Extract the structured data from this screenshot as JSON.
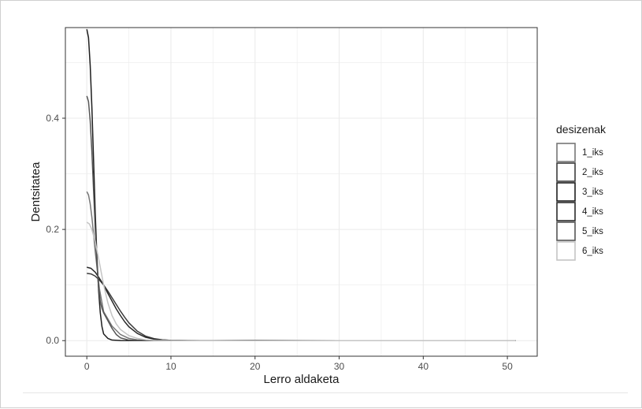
{
  "chart_data": {
    "type": "line",
    "xlabel": "Lerro aldaketa",
    "ylabel": "Dentsitatea",
    "xlim": [
      -2.55,
      53.55
    ],
    "ylim": [
      -0.028,
      0.563
    ],
    "x_ticks": [
      0,
      10,
      20,
      30,
      40,
      50
    ],
    "y_ticks": [
      0.0,
      0.2,
      0.4
    ],
    "y_tick_labels": [
      "0.0",
      "0.2",
      "0.4"
    ],
    "grid": true,
    "legend": {
      "title": "desizenak",
      "position": "right",
      "labels": [
        "1_iks",
        "2_iks",
        "3_iks",
        "4_iks",
        "5_iks",
        "6_iks"
      ]
    },
    "series": [
      {
        "name": "1_iks",
        "color": "#767676",
        "x": [
          0,
          0.2,
          0.4,
          0.6,
          0.8,
          1,
          1.5,
          2,
          3,
          4,
          5,
          6,
          8,
          10,
          15,
          20,
          30,
          40,
          51
        ],
        "y": [
          0.268,
          0.262,
          0.246,
          0.222,
          0.192,
          0.16,
          0.093,
          0.052,
          0.026,
          0.011,
          0.004,
          0.0015,
          0.0003,
          0.0001,
          0,
          0.0003,
          0,
          0,
          0
        ]
      },
      {
        "name": "2_iks",
        "color": "#3c3c3c",
        "x": [
          0,
          0.5,
          1,
          1.5,
          2,
          2.5,
          3,
          3.5,
          4,
          4.5,
          5,
          6,
          7,
          8,
          9,
          10,
          12,
          15,
          20,
          30,
          40,
          51
        ],
        "y": [
          0.121,
          0.12,
          0.116,
          0.109,
          0.1,
          0.089,
          0.077,
          0.065,
          0.053,
          0.042,
          0.032,
          0.017,
          0.008,
          0.0035,
          0.0015,
          0.0006,
          0.0002,
          0.0001,
          0.0005,
          0,
          0,
          0
        ]
      },
      {
        "name": "3_iks",
        "color": "#1e1e1e",
        "x": [
          0,
          0.2,
          0.4,
          0.6,
          0.8,
          1,
          1.2,
          1.4,
          1.6,
          1.8,
          2,
          2.5,
          3,
          4,
          6,
          10,
          20,
          30,
          40,
          51
        ],
        "y": [
          0.56,
          0.545,
          0.495,
          0.42,
          0.325,
          0.23,
          0.15,
          0.09,
          0.05,
          0.025,
          0.012,
          0.004,
          0.001,
          0.0002,
          0,
          0,
          0,
          0,
          0,
          0
        ]
      },
      {
        "name": "4_iks",
        "color": "#2a2a2a",
        "x": [
          0,
          0.5,
          1,
          1.5,
          2,
          2.5,
          3,
          3.5,
          4,
          4.5,
          5,
          6,
          7,
          8,
          9,
          10,
          12,
          15,
          20,
          30,
          40,
          51
        ],
        "y": [
          0.132,
          0.13,
          0.123,
          0.112,
          0.1,
          0.085,
          0.071,
          0.057,
          0.045,
          0.034,
          0.025,
          0.013,
          0.006,
          0.0027,
          0.0012,
          0.0005,
          0.0001,
          0,
          0,
          0,
          0,
          0
        ]
      },
      {
        "name": "5_iks",
        "color": "#555555",
        "x": [
          0,
          0.2,
          0.4,
          0.6,
          0.8,
          1,
          1.2,
          1.4,
          1.6,
          1.8,
          2,
          2.5,
          3,
          3.5,
          4,
          5,
          6,
          8,
          10,
          20,
          30,
          40,
          51
        ],
        "y": [
          0.44,
          0.43,
          0.395,
          0.34,
          0.27,
          0.2,
          0.14,
          0.095,
          0.07,
          0.058,
          0.05,
          0.036,
          0.022,
          0.011,
          0.005,
          0.001,
          0.0003,
          0,
          0,
          0,
          0,
          0,
          0
        ]
      },
      {
        "name": "6_iks",
        "color": "#c4c4c4",
        "x": [
          0,
          0.3,
          0.6,
          1,
          1.5,
          2,
          2.5,
          3,
          3.5,
          4,
          5,
          6,
          7,
          8,
          10,
          15,
          20,
          30,
          40,
          51
        ],
        "y": [
          0.213,
          0.21,
          0.2,
          0.178,
          0.14,
          0.1,
          0.068,
          0.045,
          0.03,
          0.02,
          0.009,
          0.004,
          0.0015,
          0.0005,
          0.0001,
          0,
          0,
          0,
          0,
          0
        ]
      }
    ]
  }
}
